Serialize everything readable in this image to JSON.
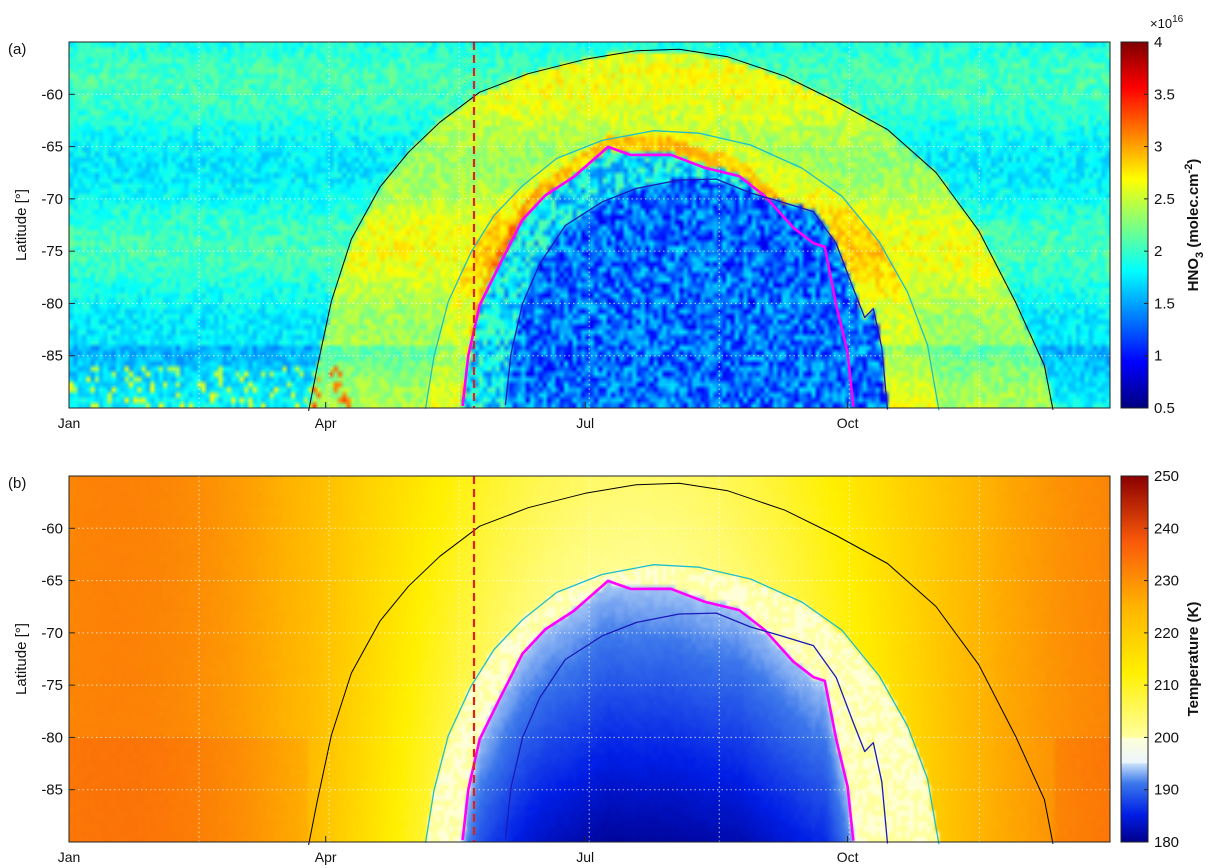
{
  "chart_data": [
    {
      "type": "heatmap",
      "panel_label": "(a)",
      "ylabel": "Latitude [°]",
      "xlabel": "",
      "x_tick_labels": [
        "Jan",
        "Apr",
        "Jul",
        "Oct"
      ],
      "x_tick_days": [
        1,
        91,
        182,
        274
      ],
      "xlim_days": [
        1,
        366
      ],
      "y_tick_labels": [
        "-60",
        "-65",
        "-70",
        "-75",
        "-80",
        "-85"
      ],
      "y_ticks": [
        -60,
        -65,
        -70,
        -75,
        -80,
        -85
      ],
      "ylim": [
        -90,
        -55
      ],
      "grid": true,
      "colorbar": {
        "label_parts": [
          "HNO",
          "3",
          " (molec.cm",
          "-2",
          ")"
        ],
        "exponent_label": "×10",
        "exponent_power": "16",
        "min": 0.5,
        "max": 4.0,
        "tick_labels": [
          "0.5",
          "1",
          "1.5",
          "2",
          "2.5",
          "3",
          "3.5",
          "4"
        ],
        "ticks": [
          0.5,
          1,
          1.5,
          2,
          2.5,
          3,
          3.5,
          4
        ],
        "colormap": "jet"
      },
      "vertical_marker": {
        "day": 143,
        "color": "#e0201a",
        "style": "dashed"
      },
      "contours": [
        {
          "color": "#000000",
          "width": 1,
          "points": [
            [
              85,
              -90
            ],
            [
              88,
              -86
            ],
            [
              93,
              -80
            ],
            [
              100,
              -74
            ],
            [
              110,
              -69
            ],
            [
              120,
              -65.5
            ],
            [
              131,
              -62.5
            ],
            [
              145,
              -60
            ],
            [
              162,
              -58
            ],
            [
              182,
              -56.6
            ],
            [
              200,
              -55.8
            ],
            [
              215,
              -55.8
            ],
            [
              232,
              -56.6
            ],
            [
              252,
              -58.5
            ],
            [
              270,
              -60.5
            ],
            [
              288,
              -63.5
            ],
            [
              305,
              -67.5
            ],
            [
              320,
              -73
            ],
            [
              333,
              -80
            ],
            [
              343,
              -86
            ],
            [
              346,
              -90
            ]
          ]
        },
        {
          "color": "#1fbfc9",
          "width": 1.3,
          "points": [
            [
              126,
              -90
            ],
            [
              129,
              -85
            ],
            [
              134,
              -80
            ],
            [
              142,
              -75
            ],
            [
              150,
              -71.5
            ],
            [
              160,
              -68.5
            ],
            [
              172,
              -66
            ],
            [
              188,
              -64.3
            ],
            [
              206,
              -63.5
            ],
            [
              222,
              -63.8
            ],
            [
              240,
              -65
            ],
            [
              258,
              -67
            ],
            [
              272,
              -70
            ],
            [
              285,
              -74
            ],
            [
              295,
              -79
            ],
            [
              302,
              -84
            ],
            [
              306,
              -90
            ]
          ]
        },
        {
          "color": "#ff00ff",
          "width": 2.6,
          "points": [
            [
              139,
              -90
            ],
            [
              141,
              -85
            ],
            [
              145,
              -80
            ],
            [
              152,
              -76
            ],
            [
              160,
              -72
            ],
            [
              168,
              -69.5
            ],
            [
              178,
              -67.8
            ],
            [
              190,
              -65.2
            ],
            [
              198,
              -65.6
            ],
            [
              212,
              -65.6
            ],
            [
              224,
              -66.8
            ],
            [
              236,
              -67.6
            ],
            [
              245,
              -70
            ],
            [
              255,
              -72.5
            ],
            [
              262,
              -74.5
            ],
            [
              266,
              -74.8
            ],
            [
              270,
              -80
            ],
            [
              274,
              -85
            ],
            [
              276,
              -90
            ]
          ]
        },
        {
          "color": "#1a1ab8",
          "width": 1.3,
          "points": [
            [
              154,
              -90
            ],
            [
              156,
              -85
            ],
            [
              160,
              -80
            ],
            [
              166,
              -76
            ],
            [
              175,
              -72.5
            ],
            [
              188,
              -70.5
            ],
            [
              200,
              -69
            ],
            [
              215,
              -68
            ],
            [
              228,
              -68.3
            ],
            [
              240,
              -69.2
            ],
            [
              250,
              -70.2
            ],
            [
              262,
              -71
            ],
            [
              270,
              -74
            ],
            [
              276,
              -78.5
            ],
            [
              280,
              -81.5
            ],
            [
              283,
              -80.5
            ],
            [
              286,
              -84
            ],
            [
              288,
              -90
            ]
          ]
        }
      ]
    },
    {
      "type": "heatmap",
      "panel_label": "(b)",
      "ylabel": "Latitude [°]",
      "xlabel": "",
      "x_tick_labels": [
        "Jan",
        "Apr",
        "Jul",
        "Oct"
      ],
      "x_tick_days": [
        1,
        91,
        182,
        274
      ],
      "xlim_days": [
        1,
        366
      ],
      "y_tick_labels": [
        "-60",
        "-65",
        "-70",
        "-75",
        "-80",
        "-85"
      ],
      "y_ticks": [
        -60,
        -65,
        -70,
        -75,
        -80,
        -85
      ],
      "ylim": [
        -90,
        -55
      ],
      "grid": true,
      "colorbar": {
        "label": "Temperature (K)",
        "min": 180,
        "max": 250,
        "tick_labels": [
          "180",
          "190",
          "200",
          "210",
          "220",
          "230",
          "240",
          "250"
        ],
        "ticks": [
          180,
          190,
          200,
          210,
          220,
          230,
          240,
          250
        ],
        "colormap": "jet-with-white-band-near-195"
      },
      "vertical_marker": {
        "day": 143,
        "color": "#e0201a",
        "style": "dashed"
      },
      "contours": [
        {
          "color": "#000000",
          "width": 1,
          "points": [
            [
              85,
              -90
            ],
            [
              88,
              -86
            ],
            [
              93,
              -80
            ],
            [
              100,
              -74
            ],
            [
              110,
              -69
            ],
            [
              120,
              -65.5
            ],
            [
              131,
              -62.5
            ],
            [
              145,
              -60
            ],
            [
              162,
              -58
            ],
            [
              182,
              -56.6
            ],
            [
              200,
              -55.8
            ],
            [
              215,
              -55.8
            ],
            [
              232,
              -56.6
            ],
            [
              252,
              -58.5
            ],
            [
              270,
              -60.5
            ],
            [
              288,
              -63.5
            ],
            [
              305,
              -67.5
            ],
            [
              320,
              -73
            ],
            [
              333,
              -80
            ],
            [
              343,
              -86
            ],
            [
              346,
              -90
            ]
          ]
        },
        {
          "color": "#1fbfc9",
          "width": 1.3,
          "points": [
            [
              126,
              -90
            ],
            [
              129,
              -85
            ],
            [
              134,
              -80
            ],
            [
              142,
              -75
            ],
            [
              150,
              -71.5
            ],
            [
              160,
              -68.5
            ],
            [
              172,
              -66
            ],
            [
              188,
              -64.3
            ],
            [
              206,
              -63.5
            ],
            [
              222,
              -63.8
            ],
            [
              240,
              -65
            ],
            [
              258,
              -67
            ],
            [
              272,
              -70
            ],
            [
              285,
              -74
            ],
            [
              295,
              -79
            ],
            [
              302,
              -84
            ],
            [
              306,
              -90
            ]
          ]
        },
        {
          "color": "#ff00ff",
          "width": 2.6,
          "points": [
            [
              139,
              -90
            ],
            [
              141,
              -85
            ],
            [
              145,
              -80
            ],
            [
              152,
              -76
            ],
            [
              160,
              -72
            ],
            [
              168,
              -69.5
            ],
            [
              178,
              -67.8
            ],
            [
              190,
              -65.2
            ],
            [
              198,
              -65.6
            ],
            [
              212,
              -65.6
            ],
            [
              224,
              -66.8
            ],
            [
              236,
              -67.6
            ],
            [
              245,
              -70
            ],
            [
              255,
              -72.5
            ],
            [
              262,
              -74.5
            ],
            [
              266,
              -74.8
            ],
            [
              270,
              -80
            ],
            [
              274,
              -85
            ],
            [
              276,
              -90
            ]
          ]
        },
        {
          "color": "#1a1ab8",
          "width": 1.3,
          "points": [
            [
              154,
              -90
            ],
            [
              156,
              -85
            ],
            [
              160,
              -80
            ],
            [
              166,
              -76
            ],
            [
              175,
              -72.5
            ],
            [
              188,
              -70.5
            ],
            [
              200,
              -69
            ],
            [
              215,
              -68
            ],
            [
              228,
              -68.3
            ],
            [
              240,
              -69.2
            ],
            [
              250,
              -70.2
            ],
            [
              262,
              -71
            ],
            [
              270,
              -74
            ],
            [
              276,
              -78.5
            ],
            [
              280,
              -81.5
            ],
            [
              283,
              -80.5
            ],
            [
              286,
              -84
            ],
            [
              288,
              -90
            ]
          ]
        }
      ]
    }
  ]
}
